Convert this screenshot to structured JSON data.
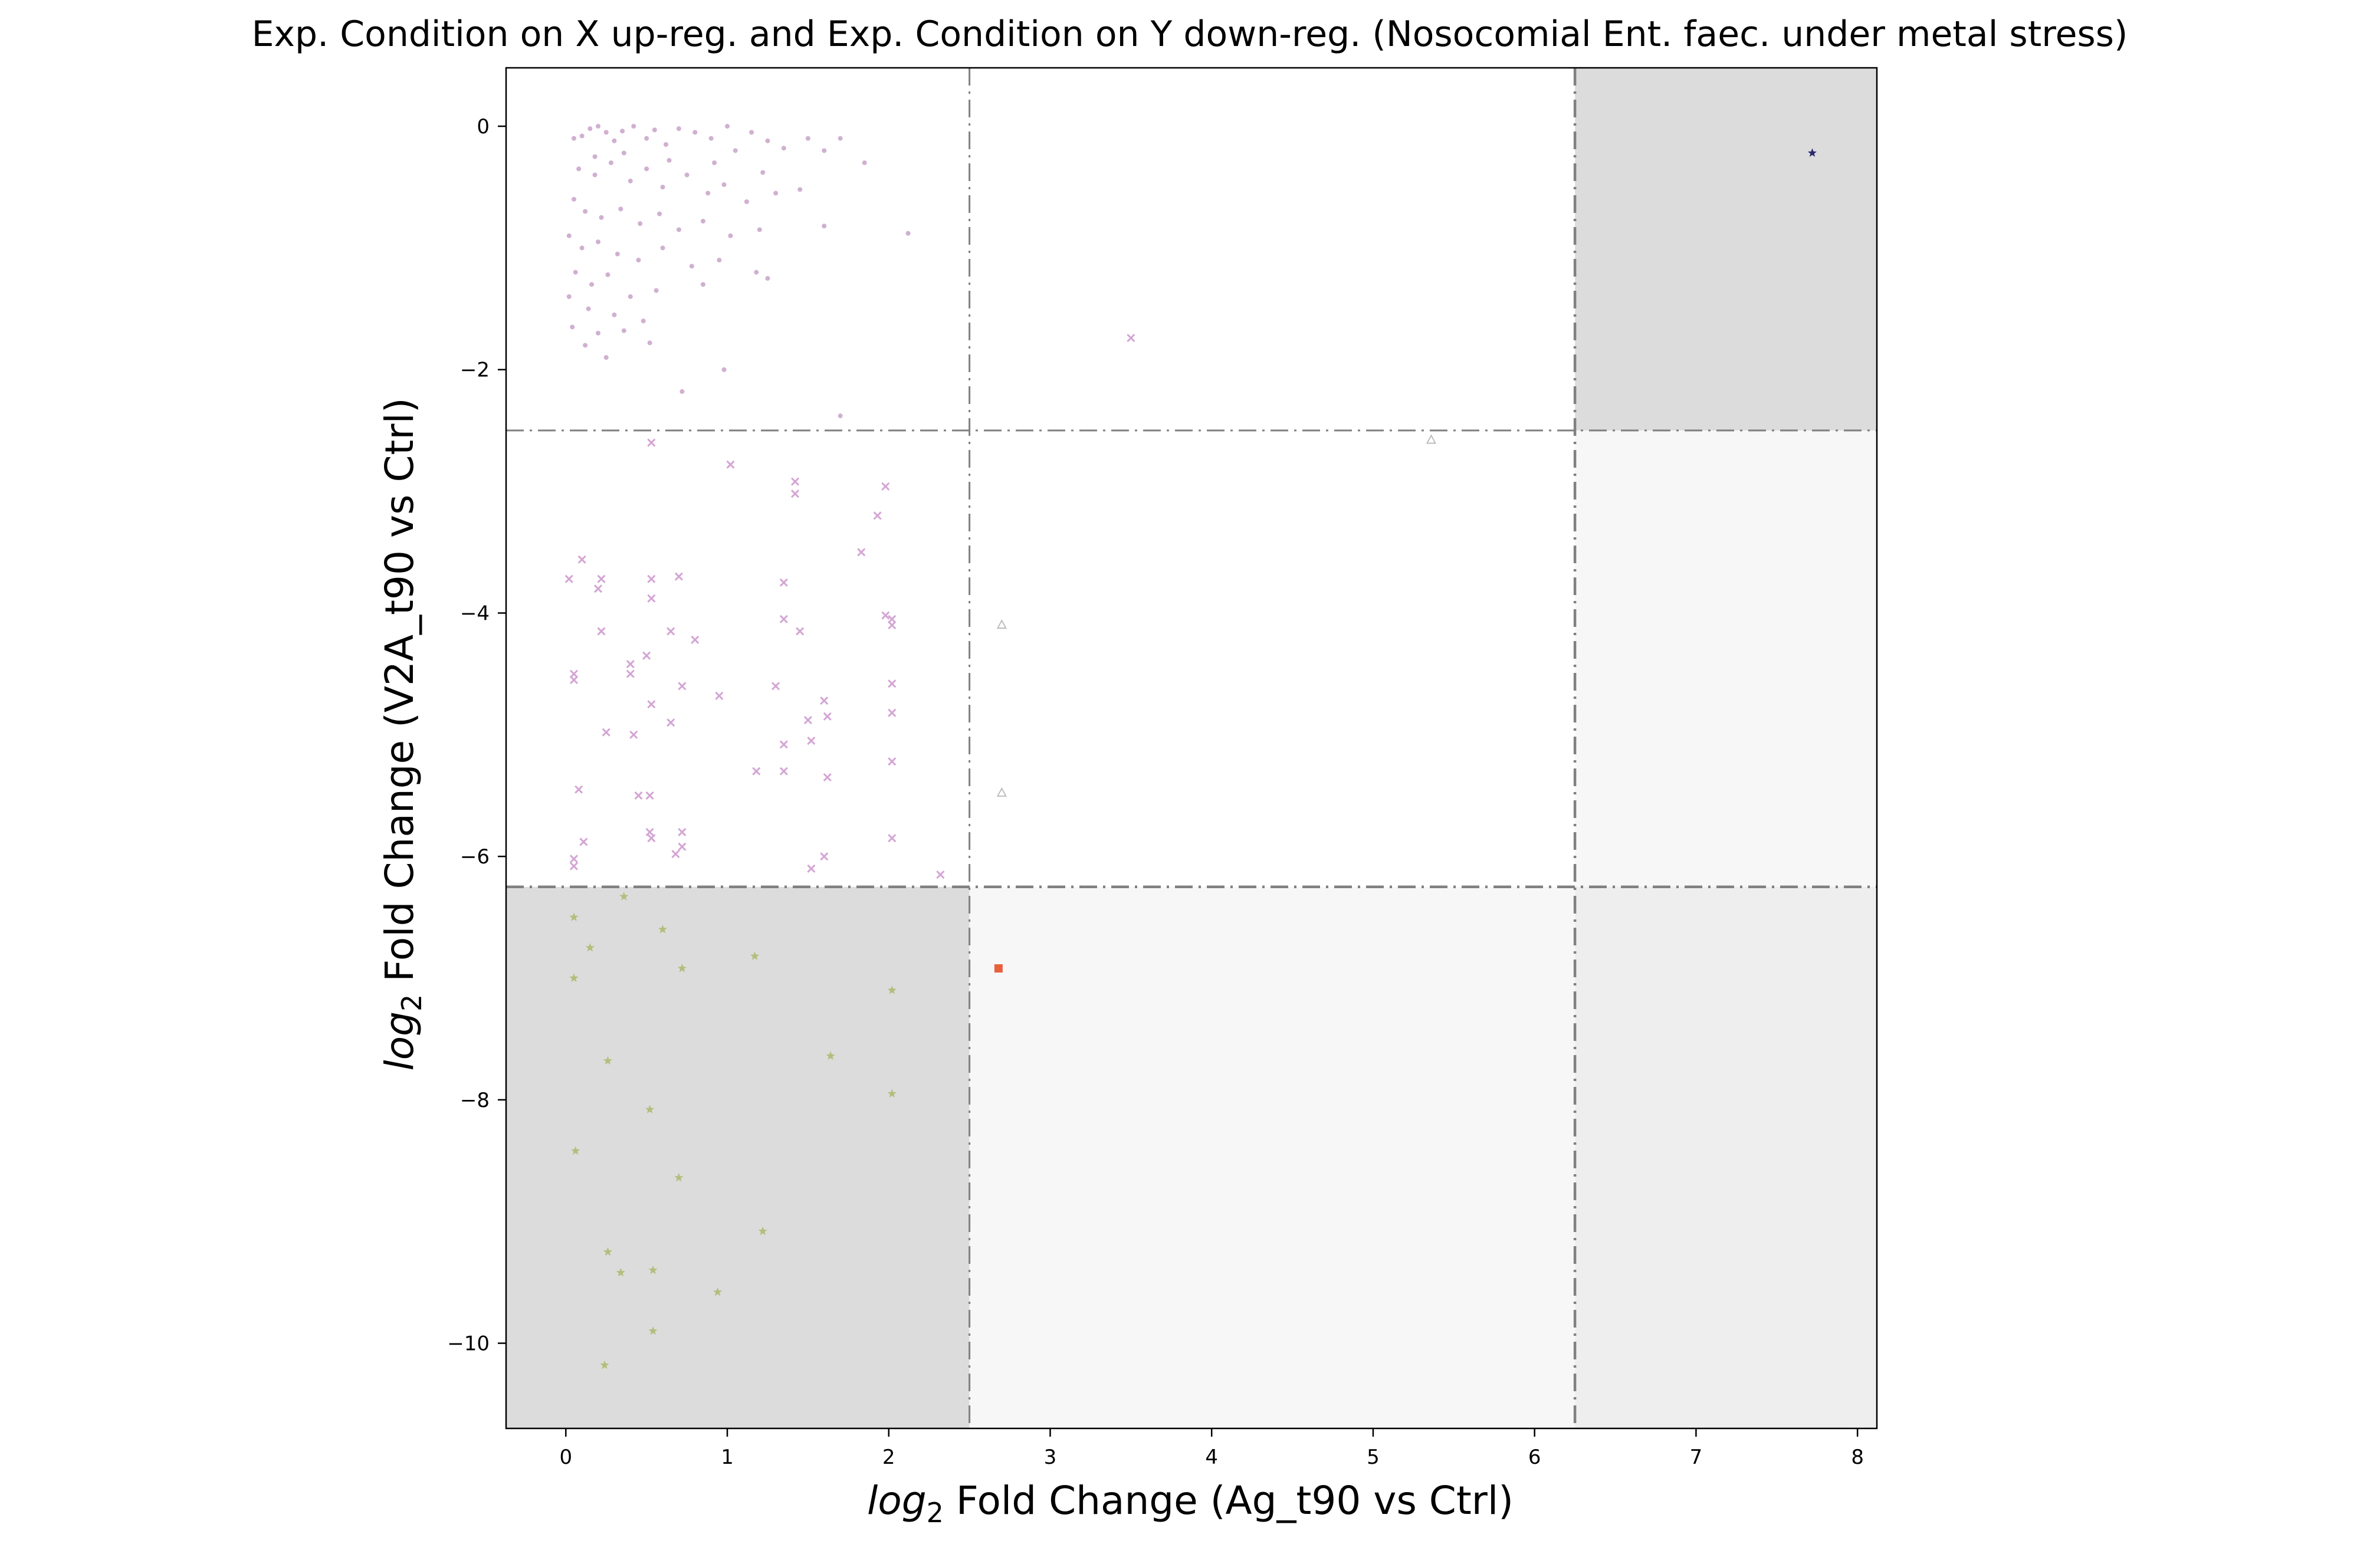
{
  "chart_data": {
    "type": "scatter",
    "title": "Exp. Condition on X up-reg. and Exp. Condition on Y down-reg. (Nosocomial Ent. faec. under metal stress)",
    "xlabel": {
      "prefix": "log",
      "sub": "2",
      "rest": " Fold Change (Ag_t90 vs Ctrl)"
    },
    "ylabel": {
      "prefix": "log",
      "sub": "2",
      "rest": " Fold Change (V2A_t90 vs Ctrl)"
    },
    "xlim": [
      -0.37,
      8.12
    ],
    "ylim": [
      -10.7,
      0.48
    ],
    "xticks": [
      0,
      1,
      2,
      3,
      4,
      5,
      6,
      7,
      8
    ],
    "xtick_labels": [
      "0",
      "1",
      "2",
      "3",
      "4",
      "5",
      "6",
      "7",
      "8"
    ],
    "yticks": [
      0,
      -2,
      -4,
      -6,
      -8,
      -10
    ],
    "ytick_labels": [
      "0",
      "−2",
      "−4",
      "−6",
      "−8",
      "−10"
    ],
    "thresholds": {
      "x": [
        2.5,
        6.25
      ],
      "y": [
        -2.5,
        -6.25
      ]
    },
    "regions": [
      {
        "x": [
          -0.37,
          2.5
        ],
        "y": [
          -10.7,
          -6.25
        ],
        "color": "#dcdcdc"
      },
      {
        "x": [
          6.25,
          8.12
        ],
        "y": [
          -2.5,
          0.48
        ],
        "color": "#dcdcdc"
      },
      {
        "x": [
          6.25,
          8.12
        ],
        "y": [
          -10.7,
          -6.25
        ],
        "color": "#eeeeee"
      },
      {
        "x": [
          2.5,
          6.25
        ],
        "y": [
          -10.7,
          -6.25
        ],
        "color": "#f7f7f7"
      },
      {
        "x": [
          6.25,
          8.12
        ],
        "y": [
          -6.25,
          -2.5
        ],
        "color": "#f7f7f7"
      }
    ],
    "grid": false,
    "legend": "none",
    "series": [
      {
        "marker": "dot",
        "color": "#c8a2c8",
        "points": [
          [
            0.05,
            -0.1
          ],
          [
            0.1,
            -0.08
          ],
          [
            0.15,
            -0.02
          ],
          [
            0.2,
            0.0
          ],
          [
            0.25,
            -0.05
          ],
          [
            0.3,
            -0.12
          ],
          [
            0.35,
            -0.04
          ],
          [
            0.42,
            0.0
          ],
          [
            0.5,
            -0.1
          ],
          [
            0.55,
            -0.03
          ],
          [
            0.62,
            -0.15
          ],
          [
            0.7,
            -0.02
          ],
          [
            0.8,
            -0.05
          ],
          [
            0.9,
            -0.1
          ],
          [
            1.0,
            0.0
          ],
          [
            1.05,
            -0.2
          ],
          [
            1.15,
            -0.05
          ],
          [
            1.25,
            -0.12
          ],
          [
            1.35,
            -0.18
          ],
          [
            1.5,
            -0.1
          ],
          [
            1.6,
            -0.2
          ],
          [
            1.7,
            -0.1
          ],
          [
            1.85,
            -0.3
          ],
          [
            0.08,
            -0.35
          ],
          [
            0.18,
            -0.4
          ],
          [
            0.28,
            -0.3
          ],
          [
            0.4,
            -0.45
          ],
          [
            0.5,
            -0.35
          ],
          [
            0.6,
            -0.5
          ],
          [
            0.75,
            -0.4
          ],
          [
            0.88,
            -0.55
          ],
          [
            0.98,
            -0.48
          ],
          [
            1.12,
            -0.62
          ],
          [
            1.3,
            -0.55
          ],
          [
            1.45,
            -0.52
          ],
          [
            0.05,
            -0.6
          ],
          [
            0.12,
            -0.7
          ],
          [
            0.22,
            -0.75
          ],
          [
            0.34,
            -0.68
          ],
          [
            0.46,
            -0.8
          ],
          [
            0.58,
            -0.72
          ],
          [
            0.7,
            -0.85
          ],
          [
            0.85,
            -0.78
          ],
          [
            1.02,
            -0.9
          ],
          [
            1.2,
            -0.85
          ],
          [
            1.6,
            -0.82
          ],
          [
            0.02,
            -0.9
          ],
          [
            0.1,
            -1.0
          ],
          [
            0.2,
            -0.95
          ],
          [
            0.32,
            -1.05
          ],
          [
            0.45,
            -1.1
          ],
          [
            0.6,
            -1.0
          ],
          [
            0.78,
            -1.15
          ],
          [
            0.95,
            -1.1
          ],
          [
            1.18,
            -1.2
          ],
          [
            1.25,
            -1.25
          ],
          [
            2.12,
            -0.88
          ],
          [
            0.06,
            -1.2
          ],
          [
            0.16,
            -1.3
          ],
          [
            0.26,
            -1.22
          ],
          [
            0.4,
            -1.4
          ],
          [
            0.56,
            -1.35
          ],
          [
            0.85,
            -1.3
          ],
          [
            0.02,
            -1.4
          ],
          [
            0.14,
            -1.5
          ],
          [
            0.3,
            -1.55
          ],
          [
            0.48,
            -1.6
          ],
          [
            0.04,
            -1.65
          ],
          [
            0.2,
            -1.7
          ],
          [
            0.36,
            -1.68
          ],
          [
            0.52,
            -1.78
          ],
          [
            0.12,
            -1.8
          ],
          [
            0.25,
            -1.9
          ],
          [
            0.72,
            -2.18
          ],
          [
            0.98,
            -2.0
          ],
          [
            1.7,
            -2.38
          ],
          [
            0.18,
            -0.25
          ],
          [
            0.36,
            -0.22
          ],
          [
            0.64,
            -0.28
          ],
          [
            0.92,
            -0.3
          ],
          [
            1.22,
            -0.38
          ]
        ]
      },
      {
        "marker": "x",
        "color": "#d4a5d4",
        "points": [
          [
            3.5,
            -1.74
          ],
          [
            0.53,
            -2.6
          ],
          [
            1.02,
            -2.78
          ],
          [
            1.42,
            -2.92
          ],
          [
            1.42,
            -3.02
          ],
          [
            1.98,
            -2.96
          ],
          [
            1.93,
            -3.2
          ],
          [
            1.83,
            -3.5
          ],
          [
            0.1,
            -3.56
          ],
          [
            0.02,
            -3.72
          ],
          [
            0.22,
            -3.72
          ],
          [
            0.2,
            -3.8
          ],
          [
            0.53,
            -3.72
          ],
          [
            0.7,
            -3.7
          ],
          [
            1.35,
            -3.75
          ],
          [
            0.53,
            -3.88
          ],
          [
            1.35,
            -4.05
          ],
          [
            1.45,
            -4.15
          ],
          [
            1.98,
            -4.02
          ],
          [
            2.02,
            -4.05
          ],
          [
            2.02,
            -4.1
          ],
          [
            0.22,
            -4.15
          ],
          [
            0.8,
            -4.22
          ],
          [
            0.65,
            -4.15
          ],
          [
            0.4,
            -4.42
          ],
          [
            0.4,
            -4.5
          ],
          [
            0.5,
            -4.35
          ],
          [
            0.05,
            -4.5
          ],
          [
            0.05,
            -4.55
          ],
          [
            0.72,
            -4.6
          ],
          [
            0.95,
            -4.68
          ],
          [
            1.3,
            -4.6
          ],
          [
            1.6,
            -4.72
          ],
          [
            2.02,
            -4.58
          ],
          [
            0.53,
            -4.75
          ],
          [
            0.65,
            -4.9
          ],
          [
            0.25,
            -4.98
          ],
          [
            0.42,
            -5.0
          ],
          [
            1.5,
            -4.88
          ],
          [
            1.62,
            -4.85
          ],
          [
            2.02,
            -4.82
          ],
          [
            1.35,
            -5.08
          ],
          [
            1.52,
            -5.05
          ],
          [
            1.18,
            -5.3
          ],
          [
            1.35,
            -5.3
          ],
          [
            1.62,
            -5.35
          ],
          [
            2.02,
            -5.22
          ],
          [
            0.08,
            -5.45
          ],
          [
            0.45,
            -5.5
          ],
          [
            0.52,
            -5.5
          ],
          [
            0.52,
            -5.8
          ],
          [
            0.53,
            -5.85
          ],
          [
            0.72,
            -5.8
          ],
          [
            0.72,
            -5.92
          ],
          [
            0.11,
            -5.88
          ],
          [
            0.68,
            -5.98
          ],
          [
            0.05,
            -6.02
          ],
          [
            0.05,
            -6.08
          ],
          [
            1.6,
            -6.0
          ],
          [
            1.52,
            -6.1
          ],
          [
            2.02,
            -5.85
          ],
          [
            2.32,
            -6.15
          ]
        ]
      },
      {
        "marker": "triangle",
        "color": "#b8b8b8",
        "points": [
          [
            5.36,
            -2.58
          ],
          [
            2.7,
            -4.1
          ],
          [
            2.7,
            -5.48
          ]
        ]
      },
      {
        "marker": "star",
        "color": "#b5bd7c",
        "points": [
          [
            0.05,
            -6.5
          ],
          [
            0.36,
            -6.33
          ],
          [
            0.15,
            -6.75
          ],
          [
            0.6,
            -6.6
          ],
          [
            0.05,
            -7.0
          ],
          [
            0.72,
            -6.92
          ],
          [
            1.17,
            -6.82
          ],
          [
            2.02,
            -7.1
          ],
          [
            1.64,
            -7.64
          ],
          [
            0.26,
            -7.68
          ],
          [
            0.52,
            -8.08
          ],
          [
            2.02,
            -7.95
          ],
          [
            0.06,
            -8.42
          ],
          [
            0.7,
            -8.64
          ],
          [
            1.22,
            -9.08
          ],
          [
            0.26,
            -9.25
          ],
          [
            0.34,
            -9.42
          ],
          [
            0.54,
            -9.4
          ],
          [
            0.94,
            -9.58
          ],
          [
            0.54,
            -9.9
          ],
          [
            0.24,
            -10.18
          ]
        ]
      },
      {
        "marker": "square",
        "color": "#e8603c",
        "points": [
          [
            2.68,
            -6.92
          ]
        ]
      },
      {
        "marker": "star",
        "color": "#2b2a6e",
        "points": [
          [
            7.72,
            -0.22
          ]
        ]
      }
    ]
  }
}
